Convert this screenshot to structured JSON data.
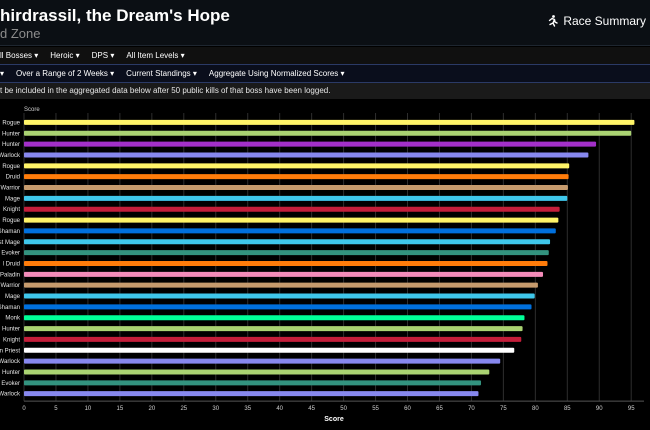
{
  "header": {
    "title": "hirdrassil, the Dream's Hope",
    "subtitle": "d Zone",
    "race_summary_label": "Race Summary"
  },
  "filters_row1": [
    "ll Bosses",
    "Heroic",
    "DPS",
    "All Item Levels"
  ],
  "filters_row2": [
    "",
    "Over a Range of 2 Weeks",
    "Current Standings",
    "Aggregate Using Normalized Scores"
  ],
  "notice": "t be included in the aggregated data below after 50 public kills of that boss have been logged.",
  "colors": {
    "header_bg": "#0b0f14",
    "grid": "#2e2e2e"
  },
  "chart_data": {
    "type": "bar",
    "orientation": "horizontal",
    "categories": [
      "Rogue",
      "Hunter",
      "Hunter",
      "Warlock",
      "Rogue",
      "Druid",
      "Warrior",
      "Mage",
      "Knight",
      "Rogue",
      "Shaman",
      "st Mage",
      "Evoker",
      "l Druid",
      "Paladin",
      "Warrior",
      "Mage",
      "Shaman",
      "Monk",
      "Hunter",
      "Knight",
      "n Priest",
      "Warlock",
      "Hunter",
      "Evoker",
      "Warlock"
    ],
    "values": [
      95.5,
      95.0,
      89.5,
      88.3,
      85.3,
      85.2,
      85.1,
      85.0,
      83.8,
      83.6,
      83.2,
      82.3,
      82.1,
      81.9,
      81.2,
      80.4,
      79.9,
      79.4,
      78.3,
      78.0,
      77.8,
      76.7,
      74.5,
      72.8,
      71.5,
      71.1
    ],
    "colors": [
      "#fff468",
      "#aad372",
      "#a330c9",
      "#8788ee",
      "#fff468",
      "#ff7c0a",
      "#c69b6d",
      "#3fc7eb",
      "#c41e3a",
      "#fff468",
      "#0070dd",
      "#3fc7eb",
      "#33937f",
      "#ff7c0a",
      "#f48cba",
      "#c69b6d",
      "#3fc7eb",
      "#0070dd",
      "#00ff98",
      "#aad372",
      "#c41e3a",
      "#ffffff",
      "#8788ee",
      "#aad372",
      "#33937f",
      "#8788ee"
    ],
    "xlim": [
      0,
      97
    ],
    "xticks": [
      0,
      5,
      10,
      15,
      20,
      25,
      30,
      35,
      40,
      45,
      50,
      55,
      60,
      65,
      70,
      75,
      80,
      85,
      90,
      95
    ],
    "xlabel": "Score",
    "header_text": "Score",
    "grid": true
  }
}
